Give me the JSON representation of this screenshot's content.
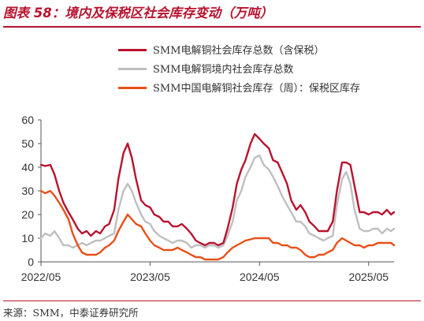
{
  "figure_title": "图表 58：境内及保税区社会库存变动（万吨）",
  "source": "来源：SMM，中泰证券研究所",
  "chart_data": {
    "type": "line",
    "y_range": [
      0,
      60
    ],
    "y_ticks": [
      "0",
      "10",
      "20",
      "30",
      "40",
      "50",
      "60"
    ],
    "x_range": [
      "2022-05-01",
      "2025-07-25"
    ],
    "x_ticks": [
      {
        "label": "2022/05",
        "date": "2022-05-01"
      },
      {
        "label": "2023/05",
        "date": "2023-05-01"
      },
      {
        "label": "2024/05",
        "date": "2024-05-01"
      },
      {
        "label": "2025/05",
        "date": "2025-05-01"
      }
    ],
    "grid": false,
    "legend_position": "top-right",
    "series": [
      {
        "name": "SMM电解铜社会库存总数（含保税）",
        "color": "#b8132f",
        "points": [
          [
            "2022-05-01",
            41
          ],
          [
            "2022-05-15",
            40.5
          ],
          [
            "2022-06-01",
            41
          ],
          [
            "2022-06-15",
            37
          ],
          [
            "2022-07-01",
            30
          ],
          [
            "2022-07-15",
            25
          ],
          [
            "2022-08-01",
            21
          ],
          [
            "2022-08-15",
            18
          ],
          [
            "2022-09-01",
            14
          ],
          [
            "2022-09-15",
            12
          ],
          [
            "2022-10-01",
            13
          ],
          [
            "2022-10-15",
            11
          ],
          [
            "2022-11-01",
            13
          ],
          [
            "2022-11-15",
            12
          ],
          [
            "2022-12-01",
            15
          ],
          [
            "2022-12-15",
            16
          ],
          [
            "2023-01-01",
            22
          ],
          [
            "2023-01-15",
            35
          ],
          [
            "2023-02-01",
            46
          ],
          [
            "2023-02-15",
            50
          ],
          [
            "2023-03-01",
            44
          ],
          [
            "2023-03-15",
            35
          ],
          [
            "2023-04-01",
            26
          ],
          [
            "2023-04-15",
            24
          ],
          [
            "2023-05-01",
            23
          ],
          [
            "2023-05-15",
            20
          ],
          [
            "2023-06-01",
            19
          ],
          [
            "2023-06-15",
            17
          ],
          [
            "2023-07-01",
            17
          ],
          [
            "2023-07-15",
            15
          ],
          [
            "2023-08-01",
            15
          ],
          [
            "2023-08-15",
            16
          ],
          [
            "2023-09-01",
            14
          ],
          [
            "2023-09-15",
            12
          ],
          [
            "2023-10-01",
            9
          ],
          [
            "2023-10-15",
            8
          ],
          [
            "2023-11-01",
            7
          ],
          [
            "2023-11-15",
            8
          ],
          [
            "2023-12-01",
            8
          ],
          [
            "2023-12-15",
            7
          ],
          [
            "2024-01-01",
            8
          ],
          [
            "2024-01-15",
            14
          ],
          [
            "2024-02-01",
            23
          ],
          [
            "2024-02-15",
            33
          ],
          [
            "2024-03-01",
            39
          ],
          [
            "2024-03-15",
            43
          ],
          [
            "2024-04-01",
            50
          ],
          [
            "2024-04-15",
            54
          ],
          [
            "2024-05-01",
            52
          ],
          [
            "2024-05-15",
            50
          ],
          [
            "2024-06-01",
            48
          ],
          [
            "2024-06-15",
            43
          ],
          [
            "2024-07-01",
            42
          ],
          [
            "2024-07-15",
            38
          ],
          [
            "2024-08-01",
            33
          ],
          [
            "2024-08-15",
            26
          ],
          [
            "2024-09-01",
            22
          ],
          [
            "2024-09-15",
            24
          ],
          [
            "2024-10-01",
            21
          ],
          [
            "2024-10-15",
            17
          ],
          [
            "2024-11-01",
            15
          ],
          [
            "2024-11-15",
            13
          ],
          [
            "2024-12-01",
            13
          ],
          [
            "2024-12-15",
            13
          ],
          [
            "2025-01-01",
            17
          ],
          [
            "2025-01-15",
            30
          ],
          [
            "2025-02-01",
            42
          ],
          [
            "2025-02-15",
            42
          ],
          [
            "2025-03-01",
            41
          ],
          [
            "2025-03-15",
            32
          ],
          [
            "2025-04-01",
            21
          ],
          [
            "2025-04-15",
            21
          ],
          [
            "2025-05-01",
            20
          ],
          [
            "2025-05-15",
            21
          ],
          [
            "2025-06-01",
            21
          ],
          [
            "2025-06-15",
            20
          ],
          [
            "2025-07-01",
            22
          ],
          [
            "2025-07-15",
            20
          ],
          [
            "2025-07-25",
            21
          ]
        ]
      },
      {
        "name": "SMM电解铜境内社会库存总数",
        "color": "#bfbfbf",
        "points": [
          [
            "2022-05-01",
            10
          ],
          [
            "2022-05-15",
            12
          ],
          [
            "2022-06-01",
            11
          ],
          [
            "2022-06-15",
            13
          ],
          [
            "2022-07-01",
            10
          ],
          [
            "2022-07-15",
            7
          ],
          [
            "2022-08-01",
            7
          ],
          [
            "2022-08-15",
            6
          ],
          [
            "2022-09-01",
            7
          ],
          [
            "2022-09-15",
            8
          ],
          [
            "2022-10-01",
            7
          ],
          [
            "2022-10-15",
            8
          ],
          [
            "2022-11-01",
            9
          ],
          [
            "2022-11-15",
            9
          ],
          [
            "2022-12-01",
            10
          ],
          [
            "2022-12-15",
            11
          ],
          [
            "2023-01-01",
            12
          ],
          [
            "2023-01-15",
            22
          ],
          [
            "2023-02-01",
            30
          ],
          [
            "2023-02-15",
            33
          ],
          [
            "2023-03-01",
            30
          ],
          [
            "2023-03-15",
            25
          ],
          [
            "2023-04-01",
            20
          ],
          [
            "2023-04-15",
            17
          ],
          [
            "2023-05-01",
            16
          ],
          [
            "2023-05-15",
            13
          ],
          [
            "2023-06-01",
            11
          ],
          [
            "2023-06-15",
            10
          ],
          [
            "2023-07-01",
            9
          ],
          [
            "2023-07-15",
            8
          ],
          [
            "2023-08-01",
            9
          ],
          [
            "2023-08-15",
            9
          ],
          [
            "2023-09-01",
            8
          ],
          [
            "2023-09-15",
            6
          ],
          [
            "2023-10-01",
            7
          ],
          [
            "2023-10-15",
            7
          ],
          [
            "2023-11-01",
            6
          ],
          [
            "2023-11-15",
            7
          ],
          [
            "2023-12-01",
            7
          ],
          [
            "2023-12-15",
            6
          ],
          [
            "2024-01-01",
            7
          ],
          [
            "2024-01-15",
            11
          ],
          [
            "2024-02-01",
            17
          ],
          [
            "2024-02-15",
            26
          ],
          [
            "2024-03-01",
            30
          ],
          [
            "2024-03-15",
            36
          ],
          [
            "2024-04-01",
            40
          ],
          [
            "2024-04-15",
            44
          ],
          [
            "2024-05-01",
            45
          ],
          [
            "2024-05-15",
            41
          ],
          [
            "2024-06-01",
            39
          ],
          [
            "2024-06-15",
            36
          ],
          [
            "2024-07-01",
            32
          ],
          [
            "2024-07-15",
            28
          ],
          [
            "2024-08-01",
            24
          ],
          [
            "2024-08-15",
            21
          ],
          [
            "2024-09-01",
            17
          ],
          [
            "2024-09-15",
            17
          ],
          [
            "2024-10-01",
            15
          ],
          [
            "2024-10-15",
            12
          ],
          [
            "2024-11-01",
            11
          ],
          [
            "2024-11-15",
            10
          ],
          [
            "2024-12-01",
            9
          ],
          [
            "2024-12-15",
            10
          ],
          [
            "2025-01-01",
            11
          ],
          [
            "2025-01-15",
            24
          ],
          [
            "2025-02-01",
            35
          ],
          [
            "2025-02-15",
            38
          ],
          [
            "2025-03-01",
            33
          ],
          [
            "2025-03-15",
            22
          ],
          [
            "2025-04-01",
            14
          ],
          [
            "2025-04-15",
            13
          ],
          [
            "2025-05-01",
            13
          ],
          [
            "2025-05-15",
            14
          ],
          [
            "2025-06-01",
            14
          ],
          [
            "2025-06-15",
            12
          ],
          [
            "2025-07-01",
            14
          ],
          [
            "2025-07-15",
            13
          ],
          [
            "2025-07-25",
            14
          ]
        ]
      },
      {
        "name": "SMM中国电解铜社会库存（周）：保税区库存",
        "color": "#e8501a",
        "points": [
          [
            "2022-05-01",
            30
          ],
          [
            "2022-05-15",
            29
          ],
          [
            "2022-06-01",
            30
          ],
          [
            "2022-06-15",
            28
          ],
          [
            "2022-07-01",
            25
          ],
          [
            "2022-07-15",
            22
          ],
          [
            "2022-08-01",
            18
          ],
          [
            "2022-08-15",
            12
          ],
          [
            "2022-09-01",
            7
          ],
          [
            "2022-09-15",
            4
          ],
          [
            "2022-10-01",
            3
          ],
          [
            "2022-10-15",
            3
          ],
          [
            "2022-11-01",
            3
          ],
          [
            "2022-11-15",
            4
          ],
          [
            "2022-12-01",
            6
          ],
          [
            "2022-12-15",
            7
          ],
          [
            "2023-01-01",
            9
          ],
          [
            "2023-01-15",
            13
          ],
          [
            "2023-02-01",
            17
          ],
          [
            "2023-02-15",
            20
          ],
          [
            "2023-03-01",
            18
          ],
          [
            "2023-03-15",
            16
          ],
          [
            "2023-04-01",
            15
          ],
          [
            "2023-04-15",
            12
          ],
          [
            "2023-05-01",
            9
          ],
          [
            "2023-05-15",
            7
          ],
          [
            "2023-06-01",
            6
          ],
          [
            "2023-06-15",
            5
          ],
          [
            "2023-07-01",
            5
          ],
          [
            "2023-07-15",
            5
          ],
          [
            "2023-08-01",
            6
          ],
          [
            "2023-08-15",
            5
          ],
          [
            "2023-09-01",
            4
          ],
          [
            "2023-09-15",
            3
          ],
          [
            "2023-10-01",
            2
          ],
          [
            "2023-10-15",
            2
          ],
          [
            "2023-11-01",
            1
          ],
          [
            "2023-11-15",
            1
          ],
          [
            "2023-12-01",
            1
          ],
          [
            "2023-12-15",
            1
          ],
          [
            "2024-01-01",
            2
          ],
          [
            "2024-01-15",
            4
          ],
          [
            "2024-02-01",
            6
          ],
          [
            "2024-02-15",
            7
          ],
          [
            "2024-03-01",
            8
          ],
          [
            "2024-03-15",
            9
          ],
          [
            "2024-04-01",
            9.5
          ],
          [
            "2024-04-15",
            10
          ],
          [
            "2024-05-01",
            10
          ],
          [
            "2024-05-15",
            10
          ],
          [
            "2024-06-01",
            10
          ],
          [
            "2024-06-15",
            8
          ],
          [
            "2024-07-01",
            8
          ],
          [
            "2024-07-15",
            7
          ],
          [
            "2024-08-01",
            7
          ],
          [
            "2024-08-15",
            6
          ],
          [
            "2024-09-01",
            6
          ],
          [
            "2024-09-15",
            5
          ],
          [
            "2024-10-01",
            3
          ],
          [
            "2024-10-15",
            2
          ],
          [
            "2024-11-01",
            2
          ],
          [
            "2024-11-15",
            3
          ],
          [
            "2024-12-01",
            3
          ],
          [
            "2024-12-15",
            4
          ],
          [
            "2025-01-01",
            5
          ],
          [
            "2025-01-15",
            8
          ],
          [
            "2025-02-01",
            10
          ],
          [
            "2025-02-15",
            9
          ],
          [
            "2025-03-01",
            8
          ],
          [
            "2025-03-15",
            7
          ],
          [
            "2025-04-01",
            7
          ],
          [
            "2025-04-15",
            6
          ],
          [
            "2025-05-01",
            7
          ],
          [
            "2025-05-15",
            7
          ],
          [
            "2025-06-01",
            8
          ],
          [
            "2025-06-15",
            8
          ],
          [
            "2025-07-01",
            8
          ],
          [
            "2025-07-15",
            8
          ],
          [
            "2025-07-25",
            7
          ]
        ]
      }
    ]
  }
}
